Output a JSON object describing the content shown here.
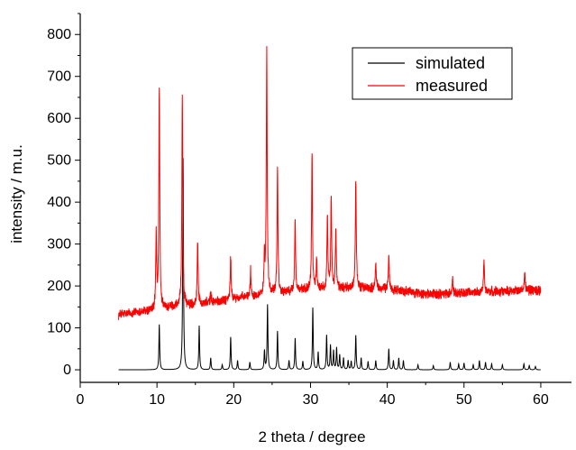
{
  "chart_data": {
    "type": "line",
    "title": "",
    "xlabel": "2 theta / degree",
    "ylabel": "intensity / m.u.",
    "xlim": [
      0,
      64
    ],
    "ylim": [
      -30,
      850
    ],
    "x_ticks": [
      0,
      10,
      20,
      30,
      40,
      50,
      60
    ],
    "y_ticks": [
      0,
      100,
      200,
      300,
      400,
      500,
      600,
      700,
      800
    ],
    "grid": false,
    "legend_position": "top-right",
    "series": [
      {
        "name": "simulated",
        "color": "#000000",
        "baseline": 0,
        "peaks": [
          [
            10.3,
            108
          ],
          [
            13.4,
            505
          ],
          [
            15.5,
            105
          ],
          [
            17.0,
            28
          ],
          [
            18.5,
            12
          ],
          [
            19.6,
            78
          ],
          [
            20.5,
            22
          ],
          [
            22.1,
            18
          ],
          [
            24.0,
            45
          ],
          [
            24.4,
            155
          ],
          [
            25.7,
            92
          ],
          [
            27.2,
            22
          ],
          [
            28.0,
            75
          ],
          [
            29.0,
            20
          ],
          [
            30.3,
            148
          ],
          [
            31.0,
            42
          ],
          [
            32.1,
            82
          ],
          [
            32.6,
            58
          ],
          [
            33.0,
            45
          ],
          [
            33.4,
            52
          ],
          [
            33.8,
            35
          ],
          [
            34.3,
            28
          ],
          [
            34.9,
            22
          ],
          [
            35.3,
            20
          ],
          [
            35.9,
            82
          ],
          [
            36.6,
            28
          ],
          [
            37.5,
            20
          ],
          [
            38.5,
            22
          ],
          [
            40.2,
            50
          ],
          [
            40.8,
            22
          ],
          [
            41.5,
            28
          ],
          [
            42.1,
            22
          ],
          [
            44.0,
            12
          ],
          [
            46.0,
            10
          ],
          [
            48.2,
            18
          ],
          [
            49.3,
            14
          ],
          [
            50.0,
            16
          ],
          [
            51.2,
            12
          ],
          [
            52.0,
            22
          ],
          [
            52.8,
            18
          ],
          [
            53.6,
            14
          ],
          [
            55.0,
            12
          ],
          [
            57.8,
            14
          ],
          [
            58.5,
            10
          ],
          [
            59.3,
            8
          ]
        ]
      },
      {
        "name": "measured",
        "color": "#ff0000",
        "baseline_points": [
          [
            5,
            132
          ],
          [
            9,
            140
          ],
          [
            12,
            150
          ],
          [
            16,
            158
          ],
          [
            22,
            175
          ],
          [
            30,
            192
          ],
          [
            36,
            196
          ],
          [
            40,
            193
          ],
          [
            45,
            180
          ],
          [
            50,
            183
          ],
          [
            55,
            188
          ],
          [
            60,
            190
          ]
        ],
        "peaks": [
          [
            9.9,
            175
          ],
          [
            10.3,
            530
          ],
          [
            13.3,
            512
          ],
          [
            15.3,
            150
          ],
          [
            17.0,
            20
          ],
          [
            19.6,
            100
          ],
          [
            22.2,
            60
          ],
          [
            24.0,
            80
          ],
          [
            24.3,
            578
          ],
          [
            25.7,
            300
          ],
          [
            28.0,
            170
          ],
          [
            30.2,
            325
          ],
          [
            30.8,
            70
          ],
          [
            32.2,
            170
          ],
          [
            32.7,
            218
          ],
          [
            33.3,
            140
          ],
          [
            35.9,
            262
          ],
          [
            38.5,
            60
          ],
          [
            40.2,
            80
          ],
          [
            48.5,
            35
          ],
          [
            52.6,
            75
          ],
          [
            57.9,
            45
          ]
        ]
      }
    ]
  }
}
